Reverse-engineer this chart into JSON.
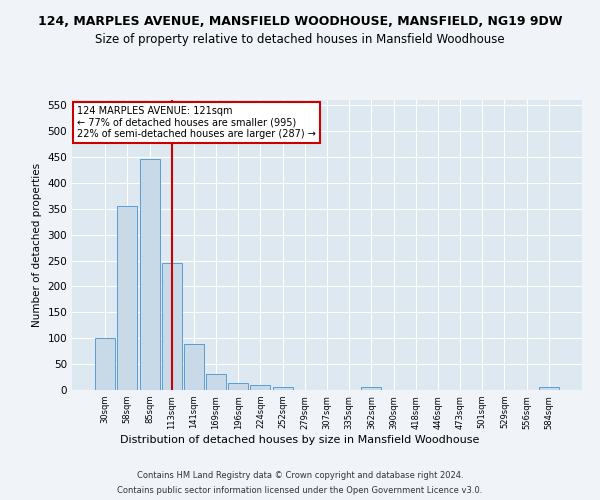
{
  "title1": "124, MARPLES AVENUE, MANSFIELD WOODHOUSE, MANSFIELD, NG19 9DW",
  "title2": "Size of property relative to detached houses in Mansfield Woodhouse",
  "xlabel": "Distribution of detached houses by size in Mansfield Woodhouse",
  "ylabel": "Number of detached properties",
  "footer1": "Contains HM Land Registry data © Crown copyright and database right 2024.",
  "footer2": "Contains public sector information licensed under the Open Government Licence v3.0.",
  "bin_labels": [
    "30sqm",
    "58sqm",
    "85sqm",
    "113sqm",
    "141sqm",
    "169sqm",
    "196sqm",
    "224sqm",
    "252sqm",
    "279sqm",
    "307sqm",
    "335sqm",
    "362sqm",
    "390sqm",
    "418sqm",
    "446sqm",
    "473sqm",
    "501sqm",
    "529sqm",
    "556sqm",
    "584sqm"
  ],
  "bar_values": [
    100,
    355,
    447,
    246,
    88,
    30,
    13,
    9,
    6,
    0,
    0,
    0,
    6,
    0,
    0,
    0,
    0,
    0,
    0,
    0,
    5
  ],
  "bar_color": "#c8d9e8",
  "bar_edge_color": "#5b9bd5",
  "ylim": [
    0,
    560
  ],
  "yticks": [
    0,
    50,
    100,
    150,
    200,
    250,
    300,
    350,
    400,
    450,
    500,
    550
  ],
  "red_line_color": "#cc0000",
  "annotation_title": "124 MARPLES AVENUE: 121sqm",
  "annotation_line1": "← 77% of detached houses are smaller (995)",
  "annotation_line2": "22% of semi-detached houses are larger (287) →",
  "annotation_box_color": "#ffffff",
  "annotation_box_edge": "#cc0000",
  "bg_color": "#dde8f0",
  "grid_color": "#ffffff",
  "fig_bg_color": "#f0f4f8",
  "title1_fontsize": 9,
  "title2_fontsize": 8.5
}
